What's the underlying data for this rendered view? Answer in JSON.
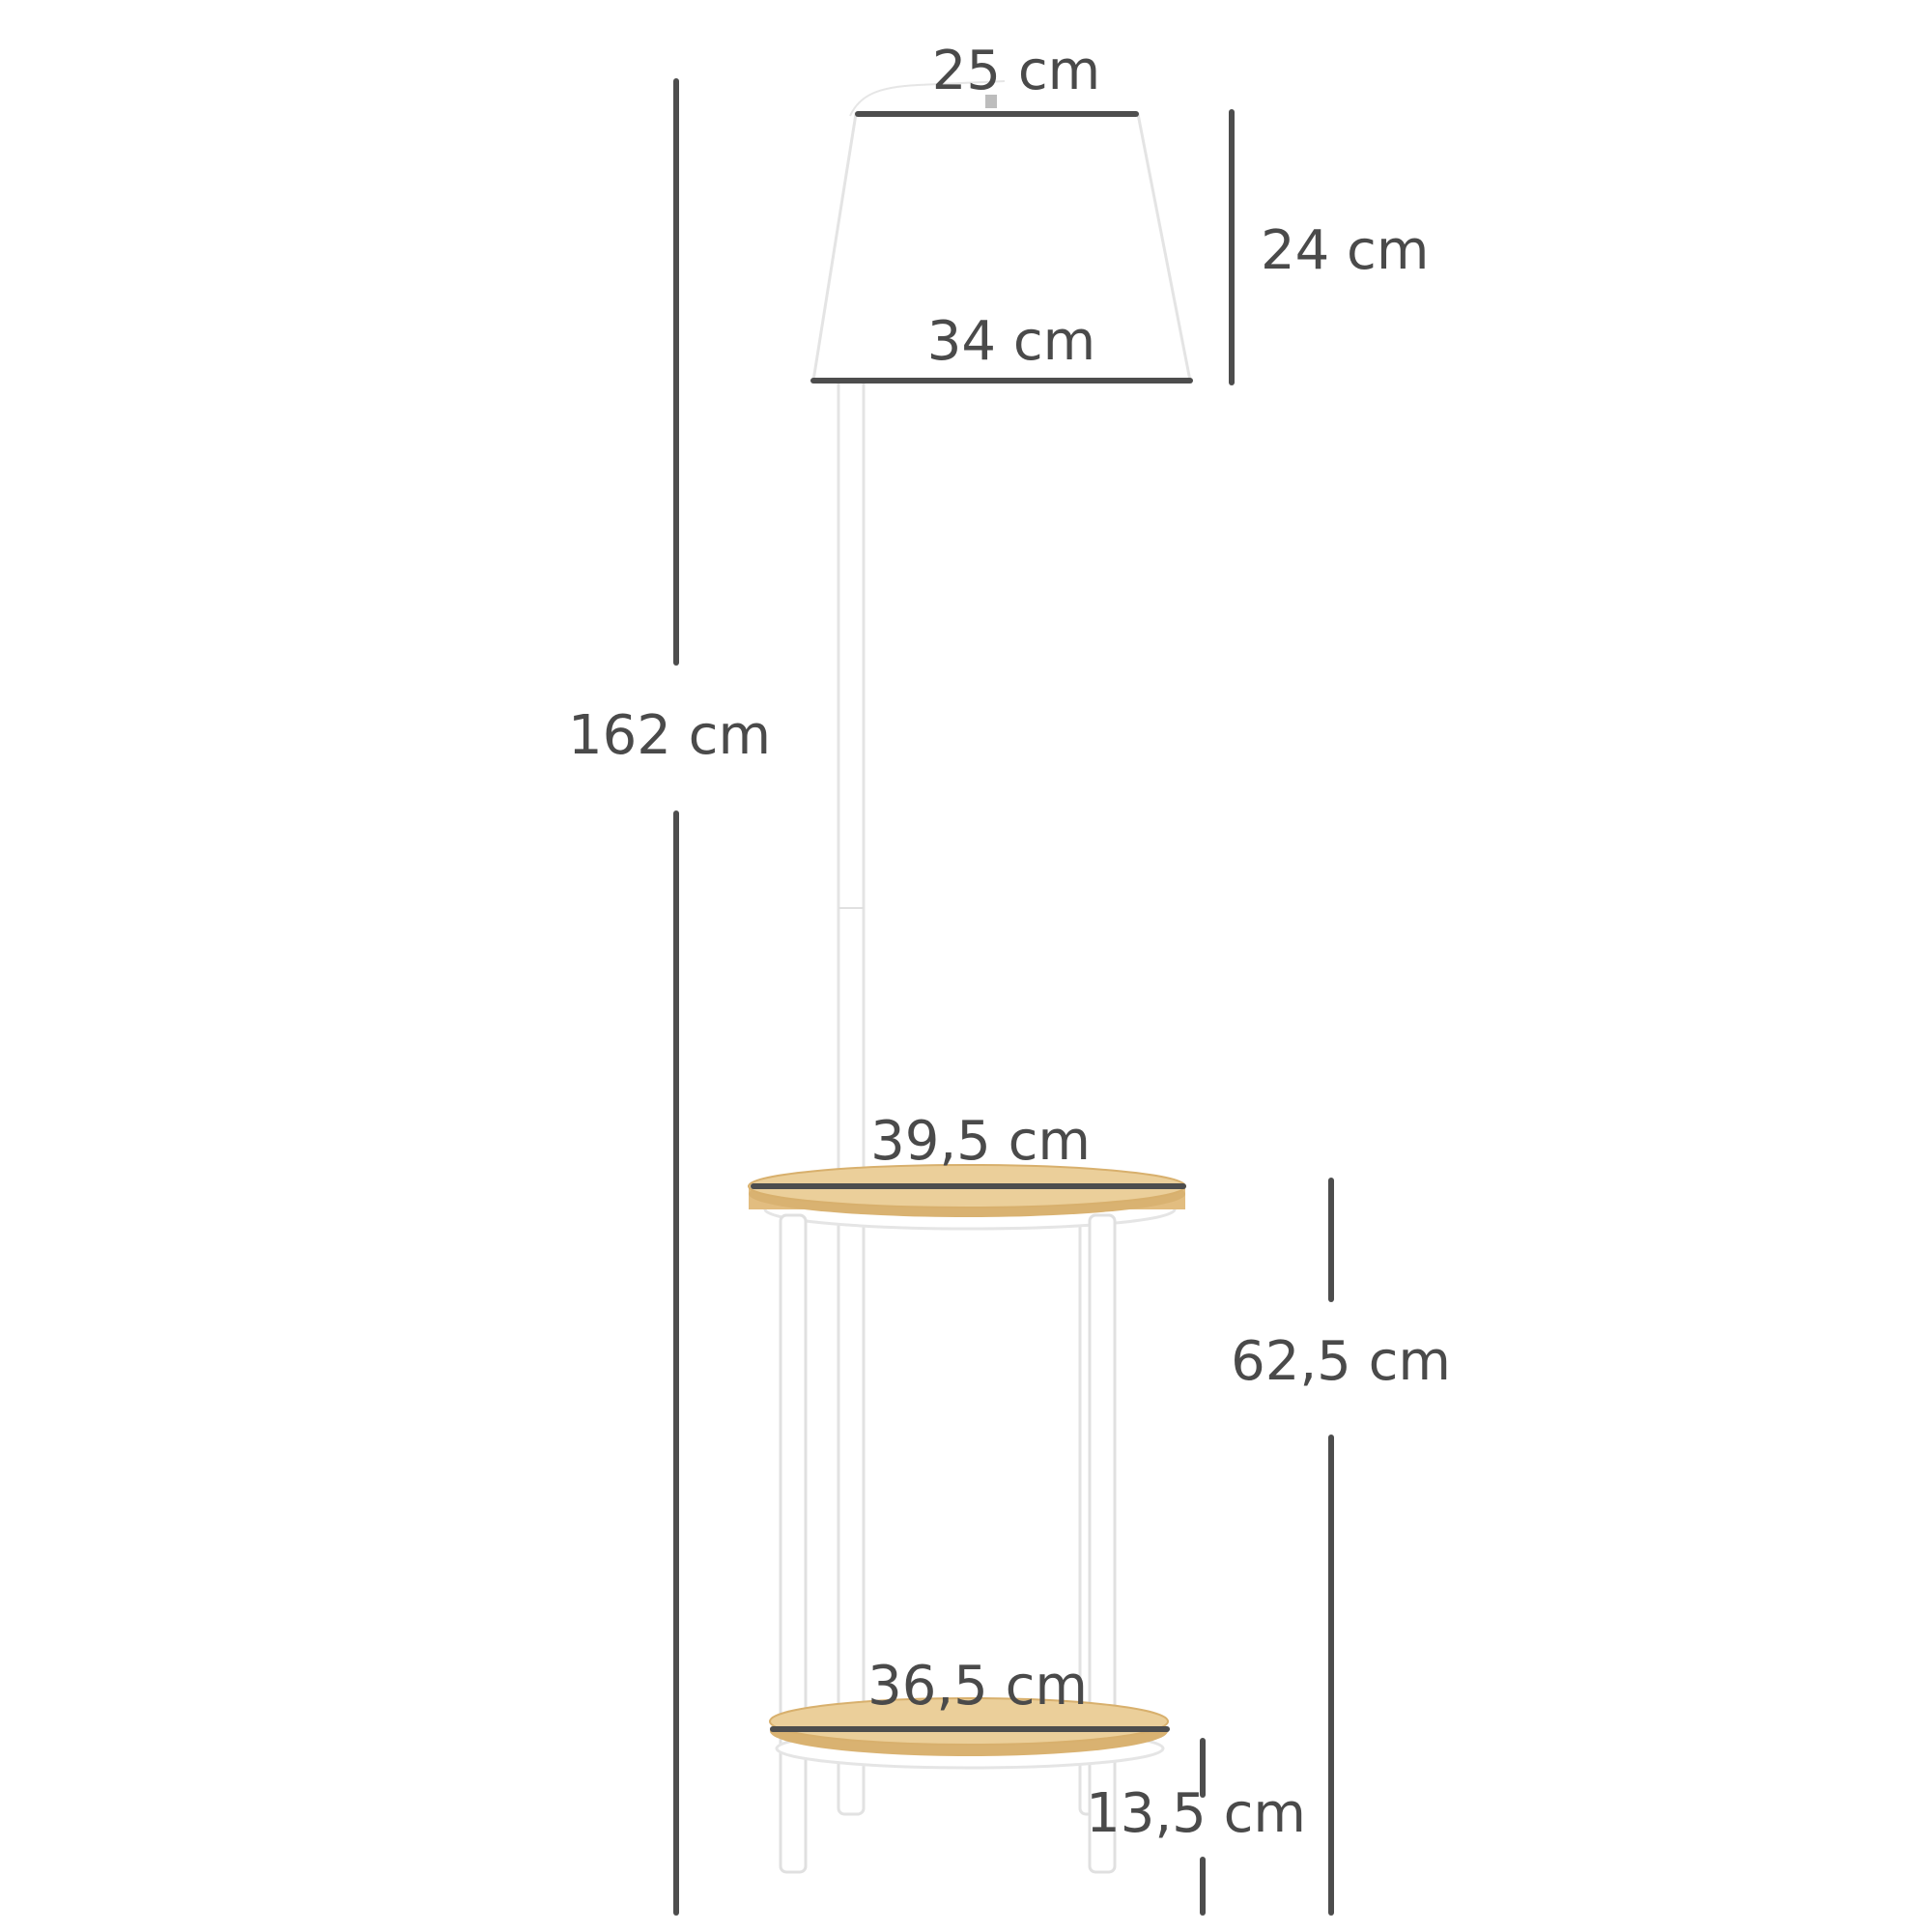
{
  "dimensions": {
    "total_height": "162 cm",
    "shade_top_diameter": "25 cm",
    "shade_height": "24 cm",
    "shade_bottom_diameter": "34 cm",
    "top_shelf_diameter": "39,5 cm",
    "table_height": "62,5 cm",
    "bottom_shelf_diameter": "36,5 cm",
    "bottom_shelf_height": "13,5 cm"
  },
  "colors": {
    "dimension_line": "#4d4d4d",
    "label_text": "#4a4a4a",
    "shade": "#ffffff",
    "shade_edge": "#e4e4e4",
    "pole": "#ffffff",
    "wood_top": "#e6c78d",
    "wood_edge": "#d9b271",
    "frame": "#ffffff"
  }
}
